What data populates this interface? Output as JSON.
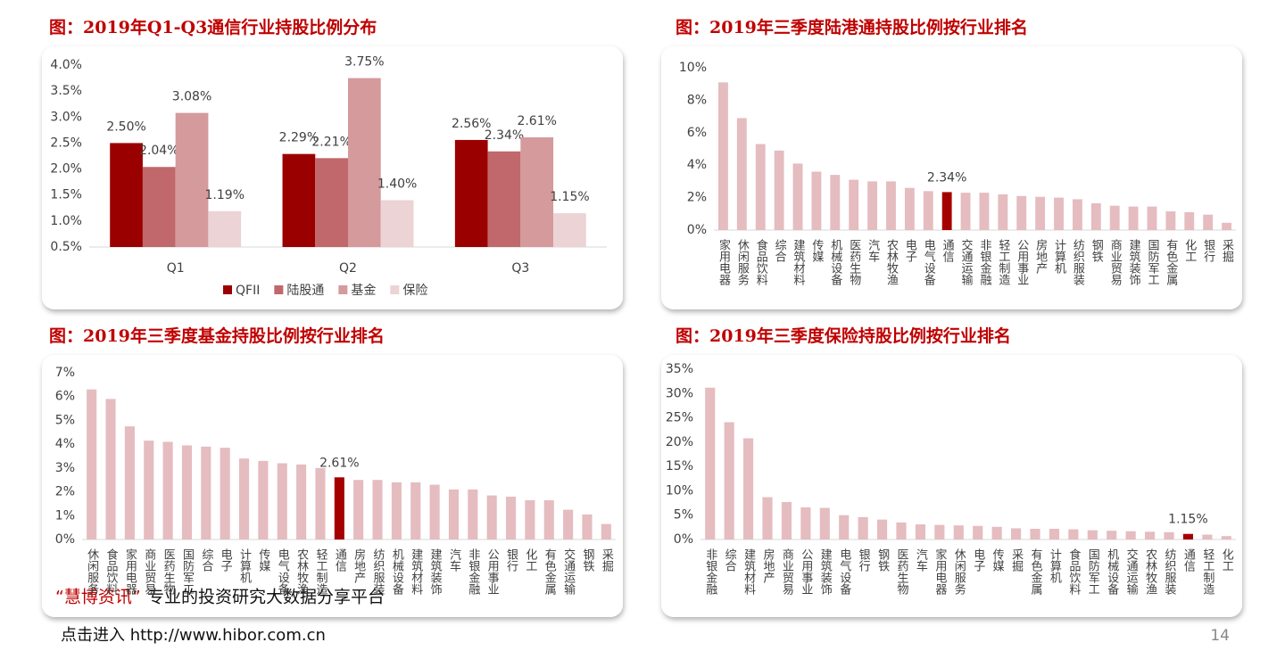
{
  "chart_data": [
    {
      "type": "bar",
      "title": "图：2019年Q1-Q3通信行业持股比例分布",
      "categories": [
        "Q1",
        "Q2",
        "Q3"
      ],
      "series": [
        {
          "name": "QFII",
          "color": "#9b0000",
          "values": [
            2.5,
            2.29,
            2.56
          ],
          "value_labels": [
            "2.50%",
            "2.29%",
            "2.56%"
          ]
        },
        {
          "name": "陆股通",
          "color": "#c0686b",
          "values": [
            2.04,
            2.21,
            2.34
          ],
          "value_labels": [
            "2.04%",
            "2.21%",
            "2.34%"
          ]
        },
        {
          "name": "基金",
          "color": "#d49a9c",
          "values": [
            3.08,
            3.75,
            2.61
          ],
          "value_labels": [
            "3.08%",
            "3.75%",
            "2.61%"
          ]
        },
        {
          "name": "保险",
          "color": "#ecd3d5",
          "values": [
            1.19,
            1.4,
            1.15
          ],
          "value_labels": [
            "1.19%",
            "1.40%",
            "1.15%"
          ]
        }
      ],
      "ylim": [
        0.5,
        4.0
      ],
      "yticks": [
        {
          "value": 0.5,
          "label": "0.5%"
        },
        {
          "value": 1.0,
          "label": "1.0%"
        },
        {
          "value": 1.5,
          "label": "1.5%"
        },
        {
          "value": 2.0,
          "label": "2.0%"
        },
        {
          "value": 2.5,
          "label": "2.5%"
        },
        {
          "value": 3.0,
          "label": "3.0%"
        },
        {
          "value": 3.5,
          "label": "3.5%"
        },
        {
          "value": 4.0,
          "label": "4.0%"
        }
      ],
      "grid": false,
      "legend": "bottom"
    },
    {
      "type": "bar",
      "title": "图：2019年三季度陆港通持股比例按行业排名",
      "categories": [
        "家用电器",
        "休闲服务",
        "食品饮料",
        "综合",
        "建筑材料",
        "传媒",
        "机械设备",
        "医药生物",
        "汽车",
        "农林牧渔",
        "电子",
        "电气设备",
        "通信",
        "交通运输",
        "非银金融",
        "轻工制造",
        "公用事业",
        "房地产",
        "计算机",
        "纺织服装",
        "钢铁",
        "商业贸易",
        "建筑装饰",
        "国防军工",
        "有色金属",
        "化工",
        "银行",
        "采掘"
      ],
      "values": [
        9.1,
        6.9,
        5.3,
        4.9,
        4.1,
        3.6,
        3.4,
        3.1,
        3.0,
        3.0,
        2.6,
        2.4,
        2.34,
        2.3,
        2.3,
        2.2,
        2.1,
        2.05,
        2.0,
        1.9,
        1.65,
        1.5,
        1.45,
        1.45,
        1.15,
        1.1,
        0.95,
        0.45
      ],
      "value_labels": [
        null,
        null,
        null,
        null,
        null,
        null,
        null,
        null,
        null,
        null,
        null,
        null,
        "2.34%",
        null,
        null,
        null,
        null,
        null,
        null,
        null,
        null,
        null,
        null,
        null,
        null,
        null,
        null,
        null
      ],
      "color": "#e5bcbf",
      "highlight_color": "#a50000",
      "ylim": [
        0,
        10
      ],
      "yticks": [
        {
          "value": 0,
          "label": "0%"
        },
        {
          "value": 2,
          "label": "2%"
        },
        {
          "value": 4,
          "label": "4%"
        },
        {
          "value": 6,
          "label": "6%"
        },
        {
          "value": 8,
          "label": "8%"
        },
        {
          "value": 10,
          "label": "10%"
        }
      ],
      "grid": false
    },
    {
      "type": "bar",
      "title": "图：2019年三季度基金持股比例按行业排名",
      "categories": [
        "休闲服务",
        "食品饮料",
        "家用电器",
        "商业贸易",
        "医药生物",
        "国防军工",
        "综合",
        "电子",
        "计算机",
        "传媒",
        "电气设备",
        "农林牧渔",
        "轻工制造",
        "通信",
        "房地产",
        "纺织服装",
        "机械设备",
        "建筑材料",
        "建筑装饰",
        "汽车",
        "非银金融",
        "公用事业",
        "银行",
        "化工",
        "有色金属",
        "交通运输",
        "钢铁",
        "采掘"
      ],
      "values": [
        6.3,
        5.9,
        4.75,
        4.15,
        4.1,
        3.95,
        3.9,
        3.85,
        3.4,
        3.3,
        3.2,
        3.15,
        3.0,
        2.61,
        2.5,
        2.5,
        2.4,
        2.4,
        2.3,
        2.1,
        2.1,
        1.85,
        1.8,
        1.65,
        1.65,
        1.25,
        1.05,
        0.65
      ],
      "value_labels": [
        null,
        null,
        null,
        null,
        null,
        null,
        null,
        null,
        null,
        null,
        null,
        null,
        null,
        "2.61%",
        null,
        null,
        null,
        null,
        null,
        null,
        null,
        null,
        null,
        null,
        null,
        null,
        null,
        null
      ],
      "color": "#e5bcbf",
      "highlight_color": "#a50000",
      "ylim": [
        0,
        7
      ],
      "yticks": [
        {
          "value": 0,
          "label": "0%"
        },
        {
          "value": 1,
          "label": "1%"
        },
        {
          "value": 2,
          "label": "2%"
        },
        {
          "value": 3,
          "label": "3%"
        },
        {
          "value": 4,
          "label": "4%"
        },
        {
          "value": 5,
          "label": "5%"
        },
        {
          "value": 6,
          "label": "6%"
        },
        {
          "value": 7,
          "label": "7%"
        }
      ],
      "grid": false
    },
    {
      "type": "bar",
      "title": "图：2019年三季度保险持股比例按行业排名",
      "categories": [
        "非银金融",
        "综合",
        "建筑材料",
        "房地产",
        "商业贸易",
        "公用事业",
        "建筑装饰",
        "电气设备",
        "银行",
        "钢铁",
        "医药生物",
        "汽车",
        "家用电器",
        "休闲服务",
        "电子",
        "传媒",
        "采掘",
        "有色金属",
        "计算机",
        "食品饮料",
        "国防军工",
        "机械设备",
        "交通运输",
        "农林牧渔",
        "纺织服装",
        "通信",
        "轻工制造",
        "化工"
      ],
      "values": [
        31.2,
        24.1,
        20.8,
        8.7,
        7.7,
        6.6,
        6.5,
        5.0,
        4.6,
        4.1,
        3.5,
        3.1,
        3.0,
        2.9,
        2.8,
        2.6,
        2.3,
        2.2,
        2.2,
        2.1,
        1.9,
        1.8,
        1.7,
        1.6,
        1.5,
        1.15,
        1.0,
        0.7
      ],
      "value_labels": [
        null,
        null,
        null,
        null,
        null,
        null,
        null,
        null,
        null,
        null,
        null,
        null,
        null,
        null,
        null,
        null,
        null,
        null,
        null,
        null,
        null,
        null,
        null,
        null,
        null,
        "1.15%",
        null,
        null
      ],
      "color": "#e5bcbf",
      "highlight_color": "#a50000",
      "ylim": [
        0,
        35
      ],
      "yticks": [
        {
          "value": 0,
          "label": "0%"
        },
        {
          "value": 5,
          "label": "5%"
        },
        {
          "value": 10,
          "label": "10%"
        },
        {
          "value": 15,
          "label": "15%"
        },
        {
          "value": 20,
          "label": "20%"
        },
        {
          "value": 25,
          "label": "25%"
        },
        {
          "value": 30,
          "label": "30%"
        },
        {
          "value": 35,
          "label": "35%"
        }
      ],
      "grid": false
    }
  ],
  "footer": {
    "brand": "“慧博资讯”",
    "slogan": "专业的投资研究大数据分享平台",
    "link": "点击进入 http://www.hibor.com.cn",
    "page": "14"
  }
}
